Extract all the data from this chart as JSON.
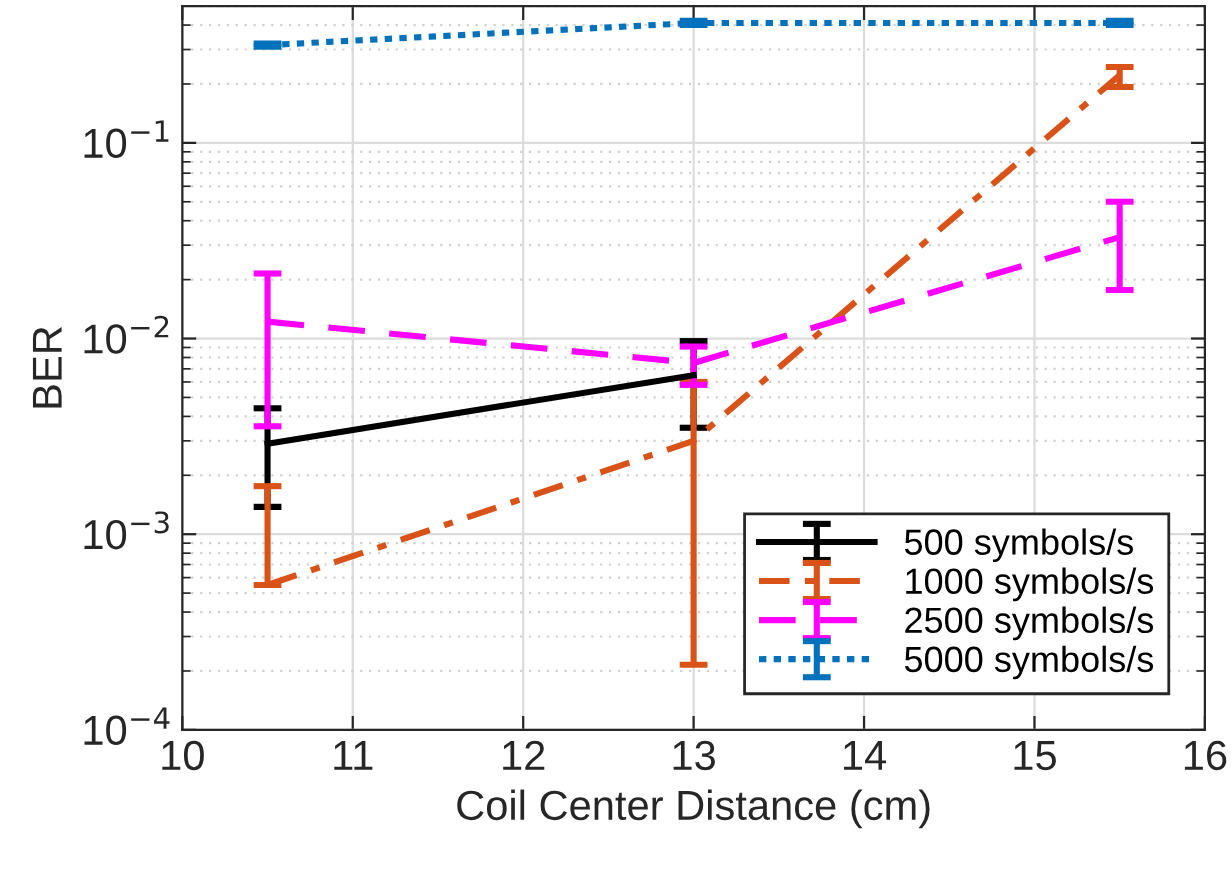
{
  "chart_data": {
    "type": "line",
    "xlabel": "Coil Center Distance (cm)",
    "ylabel": "BER",
    "log": "y",
    "grid": true,
    "legend": "bottom right",
    "x": [
      10.5,
      13,
      15.5
    ],
    "xlim": [
      10,
      16
    ],
    "xticks": [
      10,
      11,
      12,
      13,
      14,
      15,
      16
    ],
    "ylim": [
      0.0001,
      0.5
    ],
    "yticks": [
      {
        "value": 0.0001,
        "label": "10$^{−4}$"
      },
      {
        "value": 0.001,
        "label": "10$^{−3}$"
      },
      {
        "value": 0.01,
        "label": "10$^{−2}$"
      },
      {
        "value": 0.1,
        "label": "10$^{−1}$"
      }
    ],
    "series": [
      {
        "name": "500 symbols/s",
        "color": "#000000",
        "line_style": "solid",
        "values": [
          0.0029,
          0.0065,
          null
        ],
        "errors": [
          [
            0.00138,
            0.0044
          ],
          [
            0.0035,
            0.0097
          ],
          null
        ]
      },
      {
        "name": "1000 symbols/s",
        "color": "#d95319",
        "line_style": "dashdot",
        "values": [
          0.00055,
          0.003,
          0.222
        ],
        "errors": [
          [
            0.00055,
            0.00176
          ],
          [
            0.000215,
            0.006
          ],
          [
            0.193,
            0.244
          ]
        ]
      },
      {
        "name": "2500 symbols/s",
        "color": "#ff00ff",
        "line_style": "dashed",
        "values": [
          0.0122,
          0.0075,
          0.033
        ],
        "errors": [
          [
            0.00356,
            0.0215
          ],
          [
            0.0058,
            0.0091
          ],
          [
            0.0177,
            0.05
          ]
        ]
      },
      {
        "name": "5000 symbols/s",
        "color": "#0072bd",
        "line_style": "dotted",
        "values": [
          0.316,
          0.41,
          0.41
        ],
        "errors": [
          [
            0.31,
            0.322
          ],
          [
            0.4,
            0.42
          ],
          [
            0.4,
            0.42
          ]
        ]
      }
    ]
  }
}
